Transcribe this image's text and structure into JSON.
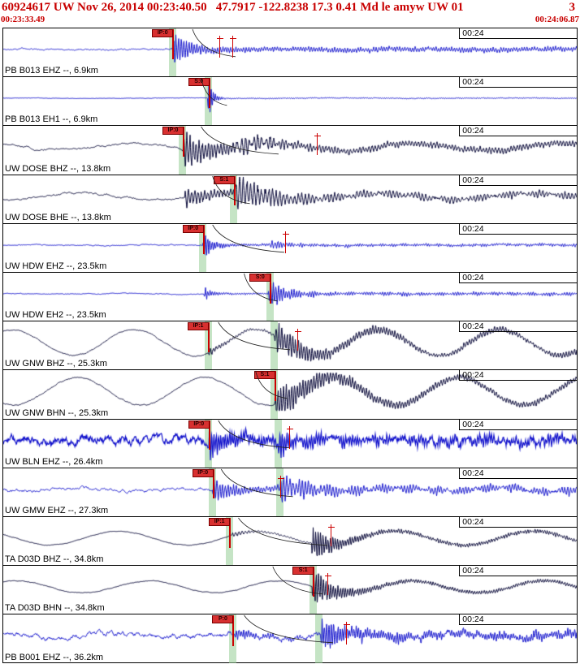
{
  "header": {
    "title": "60924617 UW Nov 26, 2014 00:23:40.50   47.7917 -122.8238 17.3 0.41 Md le amyw UW 01",
    "right_flag": "3",
    "window_start": "00:23:33.49",
    "window_end": "00:24:06.87",
    "text_color": "#c80000"
  },
  "tick_label": "00:24",
  "colors": {
    "blue_trace": "#1414cc",
    "dark_trace": "#000033",
    "pick_flag": "#d83030",
    "pick_line": "#cc0000",
    "band": "rgba(150,205,150,0.55)",
    "curve": "#222222",
    "border": "#000000",
    "background": "#ffffff"
  },
  "panels": [
    {
      "station": "PB B013 EHZ --, 6.9km",
      "trace_color": "blue",
      "bands": [
        0.295
      ],
      "pick": {
        "label": "IP:0",
        "x": 0.295
      },
      "markers": [
        0.377,
        0.4
      ],
      "curve": {
        "x0": 0.33,
        "x1": 0.405
      },
      "wave": {
        "seed": 11,
        "noise": 1.1,
        "noise_wl": 3.5,
        "lp_amp": 0.7,
        "lp_period": 160,
        "lp_phase": 0.5,
        "bursts": [
          {
            "x": 0.295,
            "amp": 15,
            "wl": 3.2,
            "decay": 0.05,
            "coda": 2.4
          }
        ]
      }
    },
    {
      "station": "PB B013 EH1 --, 6.9km",
      "trace_color": "blue",
      "bands": [
        0.358
      ],
      "pick": {
        "label": "S:0",
        "x": 0.358
      },
      "markers": [],
      "curve": {
        "x0": 0.345,
        "x1": 0.39
      },
      "wave": {
        "seed": 22,
        "noise": 0.35,
        "noise_wl": 3,
        "lp_amp": 0.3,
        "lp_period": 200,
        "lp_phase": 1,
        "bursts": [
          {
            "x": 0.356,
            "amp": 34,
            "wl": 2.6,
            "decay": 0.22,
            "coda": 0.5
          }
        ]
      }
    },
    {
      "station": "UW DOSE BHZ --, 13.8km",
      "trace_color": "dark",
      "bands": [
        0.313
      ],
      "pick": {
        "label": "IP:0",
        "x": 0.313
      },
      "markers": [
        0.547
      ],
      "curve": {
        "x0": 0.345,
        "x1": 0.48
      },
      "wave": {
        "seed": 33,
        "noise": 2.4,
        "noise_wl": 7,
        "lp_amp": 4.5,
        "lp_period": 175,
        "lp_phase": 2.2,
        "bursts": [
          {
            "x": 0.313,
            "amp": 17,
            "wl": 3.8,
            "decay": 0.03,
            "coda": 3.2
          },
          {
            "x": 0.405,
            "amp": 10,
            "wl": 5,
            "decay": 0.02,
            "coda": 0
          }
        ]
      }
    },
    {
      "station": "UW DOSE BHE --, 13.8km",
      "trace_color": "dark",
      "bands": [
        0.402
      ],
      "pick": {
        "label": "S:1",
        "x": 0.402
      },
      "markers": [],
      "curve": {
        "x0": 0.365,
        "x1": 0.43
      },
      "wave": {
        "seed": 44,
        "noise": 2.4,
        "noise_wl": 7,
        "lp_amp": 4,
        "lp_period": 185,
        "lp_phase": 4.6,
        "bursts": [
          {
            "x": 0.316,
            "amp": 9,
            "wl": 4,
            "decay": 0.035,
            "coda": 2
          },
          {
            "x": 0.402,
            "amp": 16,
            "wl": 4.5,
            "decay": 0.022,
            "coda": 2.5
          }
        ]
      }
    },
    {
      "station": "UW HDW EHZ --, 23.5km",
      "trace_color": "blue",
      "bands": [
        0.348
      ],
      "pick": {
        "label": "IP:0",
        "x": 0.348
      },
      "markers": [
        0.492
      ],
      "curve": {
        "x0": 0.365,
        "x1": 0.49
      },
      "wave": {
        "seed": 55,
        "noise": 0.8,
        "noise_wl": 4,
        "lp_amp": 0.5,
        "lp_period": 150,
        "lp_phase": 0,
        "bursts": [
          {
            "x": 0.348,
            "amp": 17,
            "wl": 2.8,
            "decay": 0.1,
            "coda": 1.1
          },
          {
            "x": 0.465,
            "amp": 5,
            "wl": 3.5,
            "decay": 0.05,
            "coda": 0.6
          }
        ]
      }
    },
    {
      "station": "UW HDW EH2 --, 23.5km",
      "trace_color": "blue",
      "bands": [
        0.465
      ],
      "pick": {
        "label": "S:0",
        "x": 0.465
      },
      "markers": [],
      "curve": {
        "x0": 0.42,
        "x1": 0.478
      },
      "wave": {
        "seed": 66,
        "noise": 0.7,
        "noise_wl": 4,
        "lp_amp": 0.4,
        "lp_period": 150,
        "lp_phase": 2,
        "bursts": [
          {
            "x": 0.35,
            "amp": 7,
            "wl": 2.8,
            "decay": 0.12,
            "coda": 0.8
          },
          {
            "x": 0.462,
            "amp": 15,
            "wl": 3.2,
            "decay": 0.05,
            "coda": 1.4
          }
        ]
      }
    },
    {
      "station": "UW GNW BHZ --, 25.3km",
      "trace_color": "dark",
      "bands": [
        0.357,
        0.473
      ],
      "pick": {
        "label": "IP:1",
        "x": 0.357
      },
      "markers": [
        0.513
      ],
      "curve": {
        "x0": 0.375,
        "x1": 0.5
      },
      "wave": {
        "seed": 77,
        "noise": 1.4,
        "noise_wl": 6,
        "lp_amp": 16,
        "lp_period": 150,
        "lp_phase": 1.1,
        "bursts": [
          {
            "x": 0.357,
            "amp": 4,
            "wl": 3.5,
            "decay": 0.08,
            "coda": 1
          },
          {
            "x": 0.473,
            "amp": 13,
            "wl": 3.4,
            "decay": 0.02,
            "coda": 2.4
          }
        ]
      }
    },
    {
      "station": "UW GNW BHN --, 25.3km",
      "trace_color": "dark",
      "bands": [
        0.473
      ],
      "pick": {
        "label": "S:1",
        "x": 0.473
      },
      "markers": [],
      "curve": {
        "x0": 0.44,
        "x1": 0.495
      },
      "wave": {
        "seed": 88,
        "noise": 1.4,
        "noise_wl": 6,
        "lp_amp": 17,
        "lp_period": 157,
        "lp_phase": 4.2,
        "bursts": [
          {
            "x": 0.473,
            "amp": 15,
            "wl": 3.4,
            "decay": 0.018,
            "coda": 2.8
          }
        ]
      }
    },
    {
      "station": "UW BLN EHZ --, 26.4km",
      "trace_color": "blue",
      "bands": [
        0.358,
        0.48
      ],
      "pick": {
        "label": "IP:0",
        "x": 0.358
      },
      "markers": [
        0.499
      ],
      "curve": {
        "x0": 0.375,
        "x1": 0.5
      },
      "wave": {
        "seed": 99,
        "noise": 4.8,
        "noise_wl": 2.4,
        "lp_amp": 1.8,
        "lp_period": 95,
        "lp_phase": 0.3,
        "lw": 1.2,
        "bursts": [
          {
            "x": 0.358,
            "amp": 15,
            "wl": 2.8,
            "decay": 0.045,
            "coda": 3
          },
          {
            "x": 0.48,
            "amp": 10,
            "wl": 3,
            "decay": 0.03,
            "coda": 2
          }
        ]
      }
    },
    {
      "station": "UW GMW EHZ --, 27.3km",
      "trace_color": "blue",
      "bands": [
        0.365,
        0.483
      ],
      "pick": {
        "label": "IP:0",
        "x": 0.365
      },
      "markers": [
        0.483
      ],
      "curve": {
        "x0": 0.38,
        "x1": 0.505
      },
      "wave": {
        "seed": 110,
        "noise": 2.8,
        "noise_wl": 4.5,
        "lp_amp": 2,
        "lp_period": 130,
        "lp_phase": 3.4,
        "bursts": [
          {
            "x": 0.365,
            "amp": 11,
            "wl": 3.4,
            "decay": 0.045,
            "coda": 2.2
          },
          {
            "x": 0.483,
            "amp": 13,
            "wl": 3.8,
            "decay": 0.028,
            "coda": 2.6
          }
        ]
      }
    },
    {
      "station": "TA D03D BHZ --, 34.8km",
      "trace_color": "dark",
      "bands": [
        0.394
      ],
      "pick": {
        "label": "IP:1",
        "x": 0.394
      },
      "markers": [
        0.571
      ],
      "curve": {
        "x0": 0.41,
        "x1": 0.565
      },
      "wave": {
        "seed": 121,
        "noise": 1.1,
        "noise_wl": 9,
        "lp_amp": 8.5,
        "lp_period": 170,
        "lp_phase": 2.6,
        "bursts": [
          {
            "x": 0.398,
            "amp": 2.5,
            "wl": 4,
            "decay": 0.05,
            "coda": 0.6
          },
          {
            "x": 0.537,
            "amp": 17,
            "wl": 3,
            "decay": 0.04,
            "coda": 1.8
          }
        ]
      }
    },
    {
      "station": "TA D03D BHN --, 34.8km",
      "trace_color": "dark",
      "bands": [
        0.54
      ],
      "pick": {
        "label": "S:1",
        "x": 0.54
      },
      "markers": [
        0.565
      ],
      "curve": {
        "x0": 0.47,
        "x1": 0.557
      },
      "wave": {
        "seed": 132,
        "noise": 1.1,
        "noise_wl": 9,
        "lp_amp": 7.5,
        "lp_period": 162,
        "lp_phase": 0.9,
        "bursts": [
          {
            "x": 0.538,
            "amp": 18,
            "wl": 3,
            "decay": 0.038,
            "coda": 1.8
          }
        ]
      }
    },
    {
      "station": "PB B001 EHZ --, 36.2km",
      "trace_color": "blue",
      "bands": [
        0.4,
        0.55
      ],
      "pick": {
        "label": "P:0",
        "x": 0.4
      },
      "markers": [
        0.598
      ],
      "curve": {
        "x0": 0.42,
        "x1": 0.575
      },
      "wave": {
        "seed": 143,
        "noise": 3.2,
        "noise_wl": 3.2,
        "lp_amp": 2.4,
        "lp_period": 140,
        "lp_phase": 1.8,
        "bursts": [
          {
            "x": 0.402,
            "amp": 5,
            "wl": 3,
            "decay": 0.05,
            "coda": 1.2
          },
          {
            "x": 0.553,
            "amp": 14,
            "wl": 2.8,
            "decay": 0.035,
            "coda": 3.5
          }
        ]
      }
    }
  ]
}
